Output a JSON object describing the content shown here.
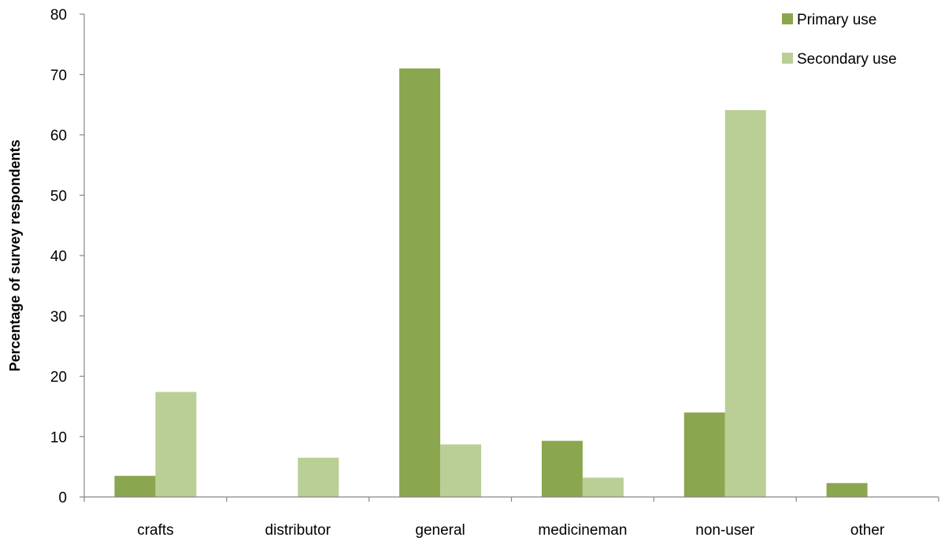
{
  "chart_data": {
    "type": "bar",
    "title": "",
    "xlabel": "",
    "ylabel": "Percentage of survey respondents",
    "ylim": [
      0,
      80
    ],
    "yticks": [
      "0",
      "10",
      "20",
      "30",
      "40",
      "50",
      "60",
      "70",
      "80"
    ],
    "categories": [
      "crafts",
      "distributor",
      "general",
      "medicineman",
      "non-user",
      "other"
    ],
    "series": [
      {
        "name": "Primary use",
        "color": "#8aa64e",
        "values": [
          3.5,
          0,
          71,
          9.3,
          14,
          2.3
        ]
      },
      {
        "name": "Secondary use",
        "color": "#b9cf96",
        "values": [
          17.4,
          6.5,
          8.7,
          3.2,
          64.1,
          0
        ]
      }
    ],
    "grid": false,
    "legend_position": "top-right"
  }
}
